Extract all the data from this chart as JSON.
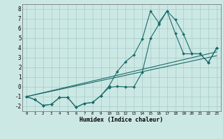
{
  "xlabel": "Humidex (Indice chaleur)",
  "bg_color": "#cce8e4",
  "grid_color": "#aacfcc",
  "line_color": "#1a6b6b",
  "xlim": [
    -0.5,
    23.5
  ],
  "ylim": [
    -2.5,
    8.5
  ],
  "xticks": [
    0,
    1,
    2,
    3,
    4,
    5,
    6,
    7,
    8,
    9,
    10,
    11,
    12,
    13,
    14,
    15,
    16,
    17,
    18,
    19,
    20,
    21,
    22,
    23
  ],
  "yticks": [
    -2,
    -1,
    0,
    1,
    2,
    3,
    4,
    5,
    6,
    7,
    8
  ],
  "line1_x": [
    0,
    1,
    2,
    3,
    4,
    5,
    6,
    7,
    8,
    9,
    10,
    11,
    12,
    13,
    14,
    15,
    16,
    17,
    18,
    19,
    20,
    21,
    22,
    23
  ],
  "line1_y": [
    -1.0,
    -1.3,
    -1.9,
    -1.8,
    -1.1,
    -1.1,
    -2.1,
    -1.7,
    -1.6,
    -0.9,
    -0.05,
    0.05,
    0.0,
    0.0,
    1.5,
    5.0,
    6.4,
    7.8,
    6.9,
    5.4,
    3.4,
    3.4,
    2.5,
    4.0
  ],
  "line2_x": [
    0,
    1,
    2,
    3,
    4,
    5,
    6,
    7,
    8,
    9,
    10,
    11,
    12,
    13,
    14,
    15,
    16,
    17,
    18,
    19,
    20,
    21,
    22,
    23
  ],
  "line2_y": [
    -1.0,
    -1.3,
    -1.9,
    -1.8,
    -1.1,
    -1.1,
    -2.1,
    -1.7,
    -1.6,
    -0.9,
    0.1,
    1.6,
    2.6,
    3.3,
    4.9,
    7.8,
    6.6,
    7.8,
    5.5,
    3.4,
    3.4,
    3.4,
    2.5,
    4.0
  ],
  "line3_x": [
    0,
    23
  ],
  "line3_y": [
    -1.0,
    3.6
  ],
  "line4_x": [
    0,
    23
  ],
  "line4_y": [
    -1.0,
    3.2
  ]
}
